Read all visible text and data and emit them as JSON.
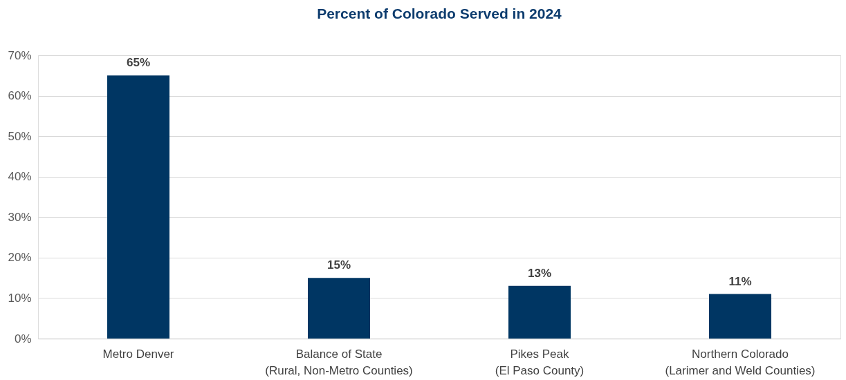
{
  "chart_data": {
    "type": "bar",
    "title": "Percent of Colorado Served in 2024",
    "categories": [
      "Metro Denver",
      "Balance of State\n(Rural, Non-Metro Counties)",
      "Pikes Peak\n(El Paso County)",
      "Northern Colorado\n(Larimer and Weld Counties)"
    ],
    "values": [
      65,
      15,
      13,
      11
    ],
    "value_labels": [
      "65%",
      "15%",
      "13%",
      "11%"
    ],
    "color": "#003663",
    "ylim": [
      0,
      70
    ],
    "yticks": [
      {
        "value": 0,
        "label": "0%"
      },
      {
        "value": 10,
        "label": "10%"
      },
      {
        "value": 20,
        "label": "20%"
      },
      {
        "value": 30,
        "label": "30%"
      },
      {
        "value": 40,
        "label": "40%"
      },
      {
        "value": 50,
        "label": "50%"
      },
      {
        "value": 60,
        "label": "60%"
      },
      {
        "value": 70,
        "label": "70%"
      }
    ],
    "grid": "y"
  }
}
